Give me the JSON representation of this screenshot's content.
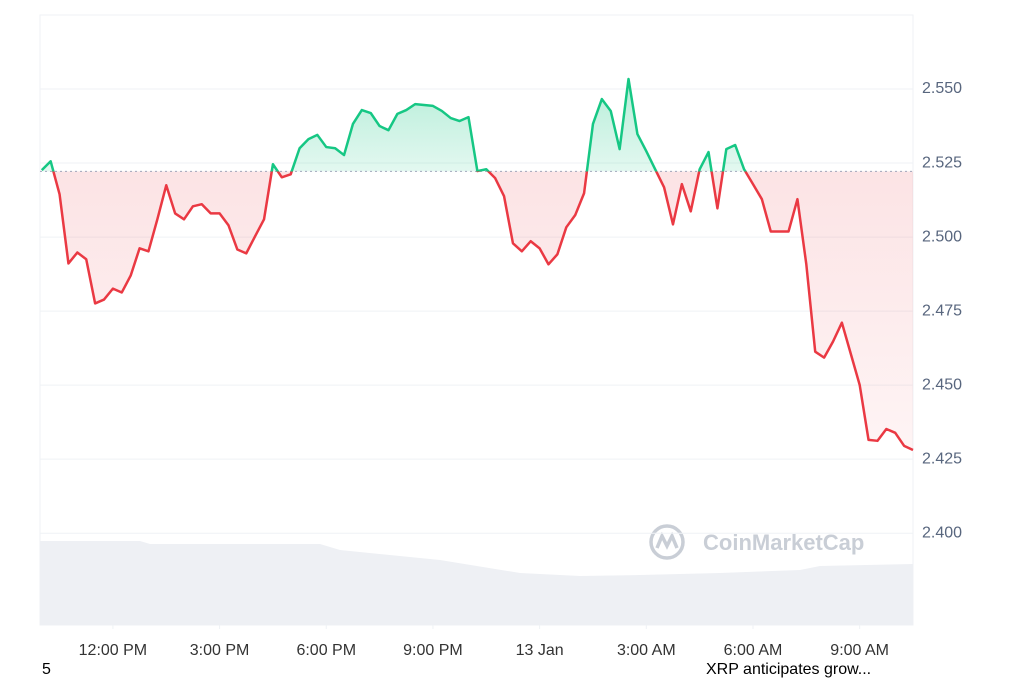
{
  "chart_data": {
    "type": "line",
    "watermark": "CoinMarketCap",
    "footer_left": "5",
    "footer_right": "XRP anticipates grow...",
    "x": [
      600,
      615,
      630,
      645,
      660,
      675,
      690,
      705,
      720,
      735,
      750,
      765,
      780,
      795,
      810,
      825,
      840,
      855,
      870,
      885,
      900,
      915,
      930,
      945,
      960,
      975,
      990,
      1005,
      1020,
      1035,
      1050,
      1065,
      1080,
      1095,
      1110,
      1125,
      1140,
      1155,
      1170,
      1185,
      1200,
      1215,
      1230,
      1245,
      1260,
      1275,
      1290,
      1305,
      1320,
      1335,
      1350,
      1365,
      1380,
      1395,
      1410,
      1425,
      1440,
      1455,
      1470,
      1485,
      1500,
      1515,
      1530,
      1545,
      1560,
      1575,
      1590,
      1605,
      1620,
      1635,
      1650,
      1665,
      1680,
      1695,
      1710,
      1725,
      1740,
      1755,
      1770,
      1785,
      1800,
      1815,
      1830,
      1845,
      1860,
      1875,
      1890,
      1905,
      1920,
      1935,
      1950,
      1965,
      1980,
      1995,
      2010,
      2025,
      2040,
      2055,
      2070
    ],
    "values": [
      2.5226,
      2.5256,
      2.5145,
      2.4911,
      2.4948,
      2.4925,
      2.4776,
      2.4789,
      2.4826,
      2.4813,
      2.487,
      2.4962,
      2.4952,
      2.506,
      2.5175,
      2.508,
      2.506,
      2.5104,
      2.5111,
      2.508,
      2.508,
      2.504,
      2.4958,
      2.4945,
      2.5003,
      2.506,
      2.5246,
      2.5202,
      2.5212,
      2.53,
      2.5331,
      2.5345,
      2.5304,
      2.53,
      2.5277,
      2.5382,
      2.5429,
      2.5419,
      2.5375,
      2.5361,
      2.5416,
      2.5429,
      2.5449,
      2.5446,
      2.5443,
      2.5426,
      2.5402,
      2.5392,
      2.5405,
      2.5223,
      2.5229,
      2.5199,
      2.5138,
      2.4979,
      2.4952,
      2.4986,
      2.4962,
      2.4908,
      2.4942,
      2.5033,
      2.5074,
      2.5148,
      2.5382,
      2.5466,
      2.5426,
      2.5297,
      2.5534,
      2.5348,
      2.529,
      2.5229,
      2.5168,
      2.5043,
      2.5179,
      2.5087,
      2.5229,
      2.5287,
      2.5097,
      2.5297,
      2.5311,
      2.5229,
      2.5179,
      2.5128,
      2.5019,
      2.5019,
      2.5019,
      2.5128,
      2.4908,
      2.4613,
      2.4593,
      2.4647,
      2.4711,
      2.4606,
      2.4501,
      2.4315,
      2.4312,
      2.4352,
      2.4339,
      2.4295,
      2.4281
    ],
    "baseline": 2.5222,
    "up_color": "#16c784",
    "down_color": "#ea3943",
    "xlim": [
      597,
      2070
    ],
    "ylim": [
      2.369,
      2.575
    ],
    "xticks": [
      {
        "value": 720,
        "label": "12:00 PM"
      },
      {
        "value": 900,
        "label": "3:00 PM"
      },
      {
        "value": 1080,
        "label": "6:00 PM"
      },
      {
        "value": 1260,
        "label": "9:00 PM"
      },
      {
        "value": 1440,
        "label": "13 Jan"
      },
      {
        "value": 1620,
        "label": "3:00 AM"
      },
      {
        "value": 1800,
        "label": "6:00 AM"
      },
      {
        "value": 1980,
        "label": "9:00 AM"
      }
    ],
    "yticks": [
      {
        "value": 2.4,
        "label": "2.400"
      },
      {
        "value": 2.425,
        "label": "2.425"
      },
      {
        "value": 2.45,
        "label": "2.450"
      },
      {
        "value": 2.475,
        "label": "2.475"
      },
      {
        "value": 2.5,
        "label": "2.500"
      },
      {
        "value": 2.525,
        "label": "2.525"
      },
      {
        "value": 2.55,
        "label": "2.550"
      }
    ],
    "grid": true
  }
}
